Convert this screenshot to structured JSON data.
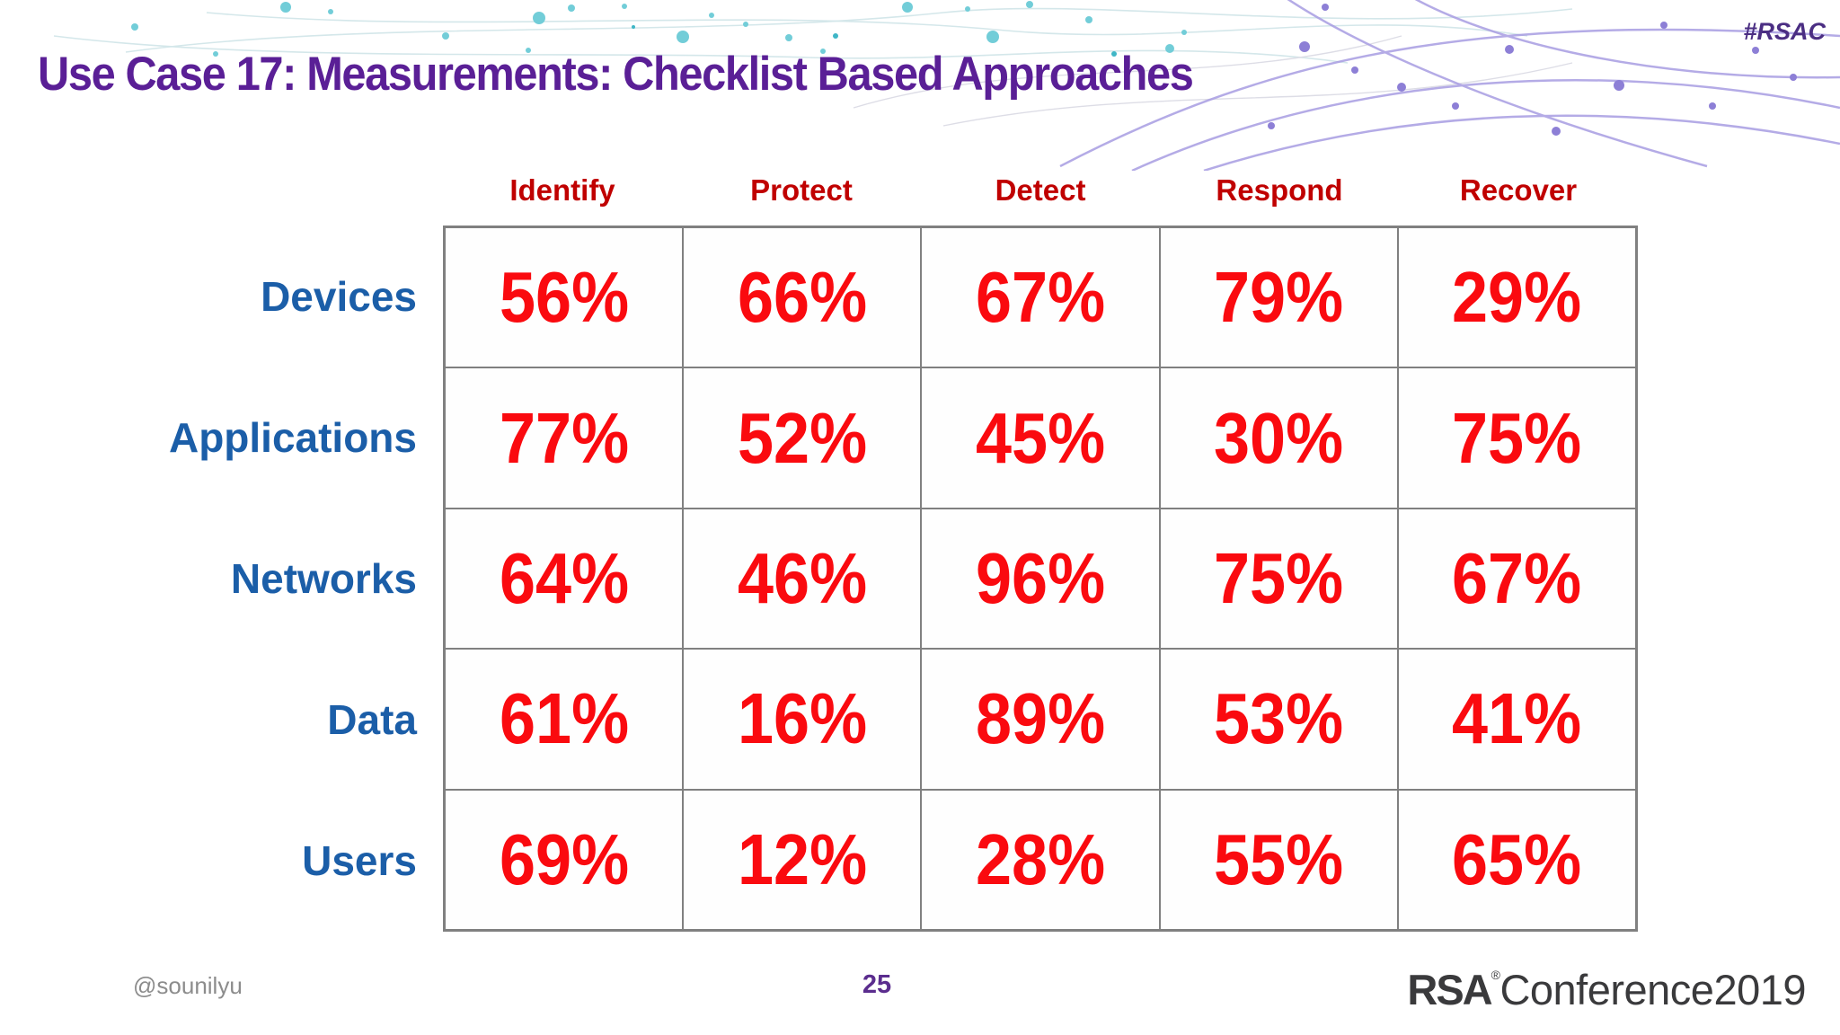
{
  "slide": {
    "hashtag": "#RSAC",
    "title": "Use Case 17: Measurements: Checklist Based Approaches",
    "footer": {
      "handle": "@sounilyu",
      "page_number": "25",
      "logo_bold": "RSA",
      "logo_reg": "®",
      "logo_light": "Conference2019"
    }
  },
  "chart_data": {
    "type": "table",
    "title": "Use Case 17: Measurements: Checklist Based Approaches",
    "columns": [
      "Identify",
      "Protect",
      "Detect",
      "Respond",
      "Recover"
    ],
    "rows": [
      {
        "label": "Devices",
        "values": [
          "56%",
          "66%",
          "67%",
          "79%",
          "29%"
        ]
      },
      {
        "label": "Applications",
        "values": [
          "77%",
          "52%",
          "45%",
          "30%",
          "75%"
        ]
      },
      {
        "label": "Networks",
        "values": [
          "64%",
          "46%",
          "96%",
          "75%",
          "67%"
        ]
      },
      {
        "label": "Data",
        "values": [
          "61%",
          "16%",
          "89%",
          "53%",
          "41%"
        ]
      },
      {
        "label": "Users",
        "values": [
          "69%",
          "12%",
          "28%",
          "55%",
          "65%"
        ]
      }
    ],
    "layout": {
      "grid": "5x5",
      "row_header_position": "left",
      "column_header_position": "top"
    },
    "colors": {
      "title_text": "#5A1F96",
      "header_text": "#C00000",
      "row_label_text": "#1B5EA8",
      "value_text": "#FA0A0F",
      "grid_border": "#808080",
      "hashtag_text": "#4B2E83",
      "page_number_text": "#5B2D8E",
      "handle_text": "#8C8C8C",
      "logo_text": "#3A3A3C",
      "deco_teal": "#72CDD8",
      "deco_purple": "#8D7FD6"
    }
  }
}
